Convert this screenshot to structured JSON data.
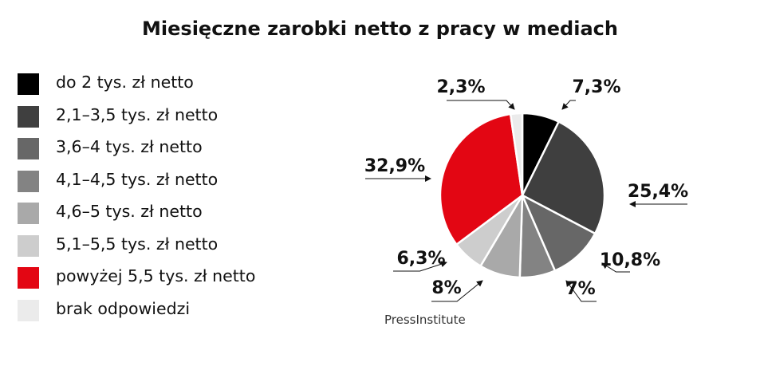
{
  "chart_data": {
    "type": "pie",
    "title": "Miesięczne zarobki netto z pracy w mediach",
    "legend_position": "left",
    "slices": [
      {
        "label": "do 2 tys. zł netto",
        "value": 7.3,
        "value_label": "7,3%",
        "color": "#000000"
      },
      {
        "label": "2,1–3,5 tys. zł netto",
        "value": 25.4,
        "value_label": "25,4%",
        "color": "#3f3f3f"
      },
      {
        "label": "3,6–4 tys. zł netto",
        "value": 10.8,
        "value_label": "10,8%",
        "color": "#676767"
      },
      {
        "label": "4,1–4,5 tys. zł netto",
        "value": 7,
        "value_label": "7%",
        "color": "#838383"
      },
      {
        "label": "4,6–5 tys. zł netto",
        "value": 8,
        "value_label": "8%",
        "color": "#a9a9a9"
      },
      {
        "label": "5,1–5,5 tys. zł netto",
        "value": 6.3,
        "value_label": "6,3%",
        "color": "#cdcdcd"
      },
      {
        "label": "powyżej 5,5 tys. zł netto",
        "value": 32.9,
        "value_label": "32,9%",
        "color": "#e30613"
      },
      {
        "label": "brak odpowiedzi",
        "value": 2.3,
        "value_label": "2,3%",
        "color": "#ebebeb"
      }
    ],
    "source": "PressInstitute"
  }
}
